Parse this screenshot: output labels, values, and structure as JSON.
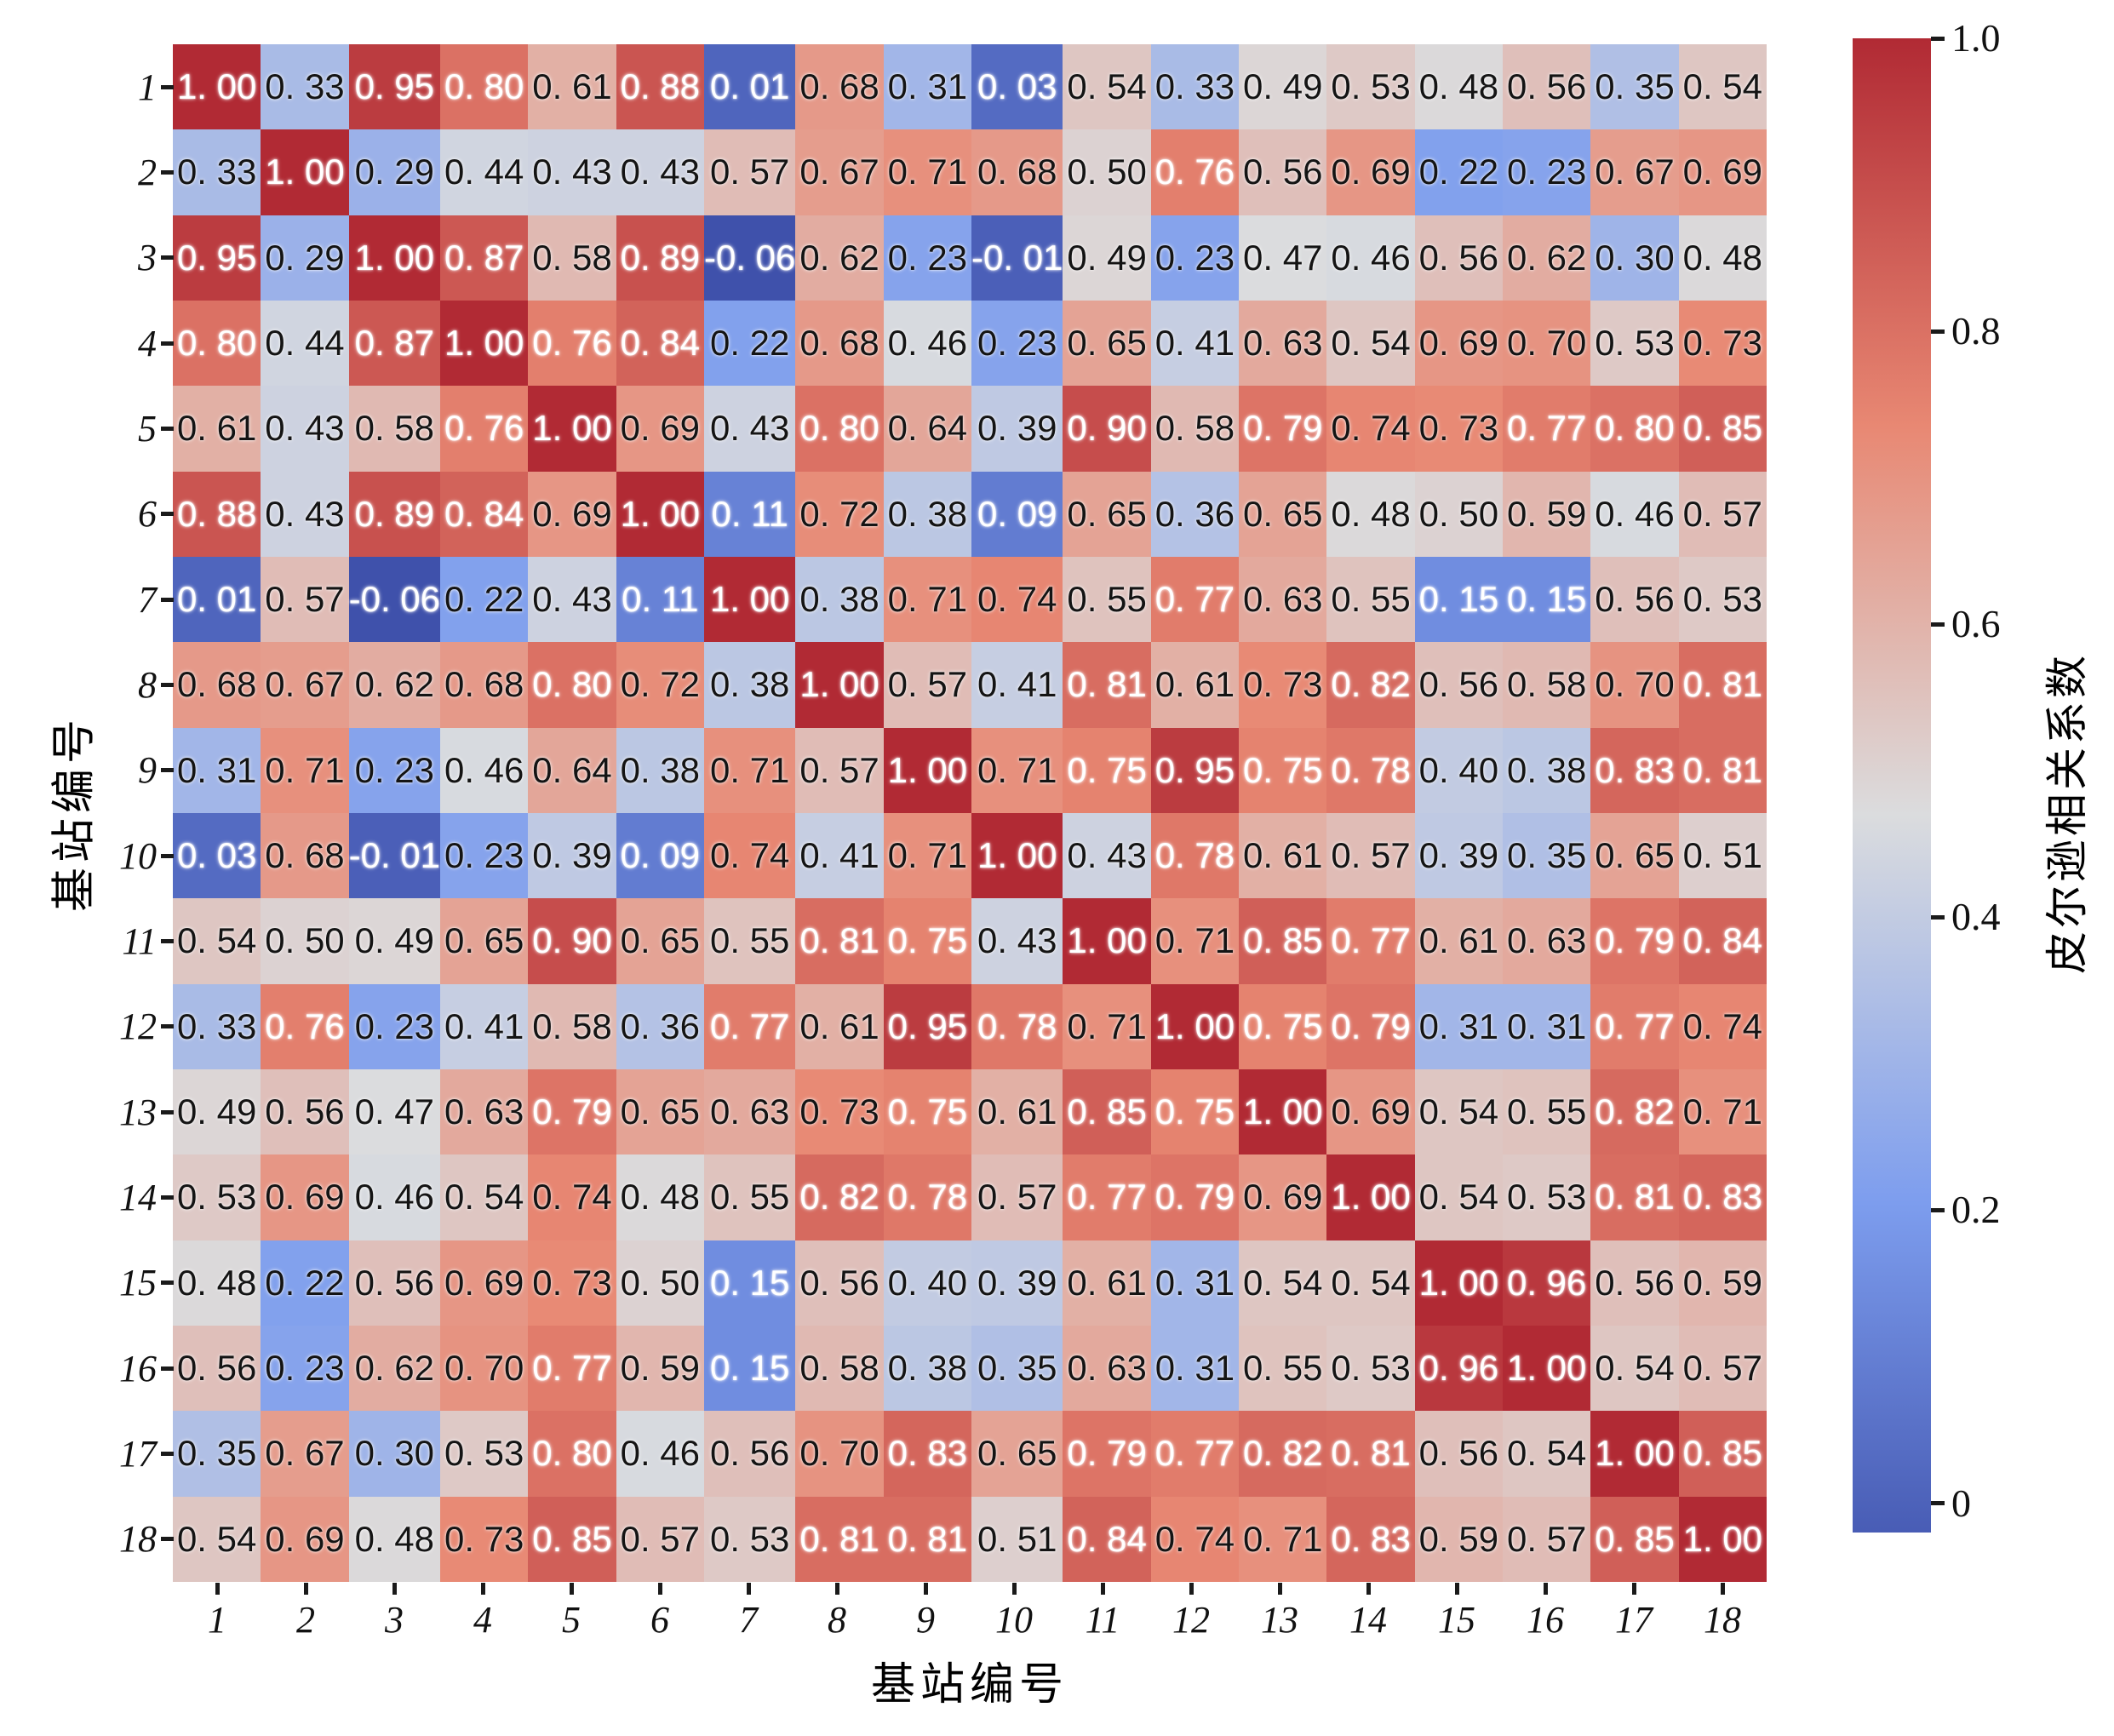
{
  "chart_data": {
    "type": "heatmap",
    "title": "",
    "xlabel": "基站编号",
    "ylabel": "基站编号",
    "categories": [
      "1",
      "2",
      "3",
      "4",
      "5",
      "6",
      "7",
      "8",
      "9",
      "10",
      "11",
      "12",
      "13",
      "14",
      "15",
      "16",
      "17",
      "18"
    ],
    "matrix": [
      [
        1.0,
        0.33,
        0.95,
        0.8,
        0.61,
        0.88,
        0.01,
        0.68,
        0.31,
        0.03,
        0.54,
        0.33,
        0.49,
        0.53,
        0.48,
        0.56,
        0.35,
        0.54
      ],
      [
        0.33,
        1.0,
        0.29,
        0.44,
        0.43,
        0.43,
        0.57,
        0.67,
        0.71,
        0.68,
        0.5,
        0.76,
        0.56,
        0.69,
        0.22,
        0.23,
        0.67,
        0.69
      ],
      [
        0.95,
        0.29,
        1.0,
        0.87,
        0.58,
        0.89,
        -0.06,
        0.62,
        0.23,
        -0.01,
        0.49,
        0.23,
        0.47,
        0.46,
        0.56,
        0.62,
        0.3,
        0.48
      ],
      [
        0.8,
        0.44,
        0.87,
        1.0,
        0.76,
        0.84,
        0.22,
        0.68,
        0.46,
        0.23,
        0.65,
        0.41,
        0.63,
        0.54,
        0.69,
        0.7,
        0.53,
        0.73
      ],
      [
        0.61,
        0.43,
        0.58,
        0.76,
        1.0,
        0.69,
        0.43,
        0.8,
        0.64,
        0.39,
        0.9,
        0.58,
        0.79,
        0.74,
        0.73,
        0.77,
        0.8,
        0.85
      ],
      [
        0.88,
        0.43,
        0.89,
        0.84,
        0.69,
        1.0,
        0.11,
        0.72,
        0.38,
        0.09,
        0.65,
        0.36,
        0.65,
        0.48,
        0.5,
        0.59,
        0.46,
        0.57
      ],
      [
        0.01,
        0.57,
        -0.06,
        0.22,
        0.43,
        0.11,
        1.0,
        0.38,
        0.71,
        0.74,
        0.55,
        0.77,
        0.63,
        0.55,
        0.15,
        0.15,
        0.56,
        0.53
      ],
      [
        0.68,
        0.67,
        0.62,
        0.68,
        0.8,
        0.72,
        0.38,
        1.0,
        0.57,
        0.41,
        0.81,
        0.61,
        0.73,
        0.82,
        0.56,
        0.58,
        0.7,
        0.81
      ],
      [
        0.31,
        0.71,
        0.23,
        0.46,
        0.64,
        0.38,
        0.71,
        0.57,
        1.0,
        0.71,
        0.75,
        0.95,
        0.75,
        0.78,
        0.4,
        0.38,
        0.83,
        0.81
      ],
      [
        0.03,
        0.68,
        -0.01,
        0.23,
        0.39,
        0.09,
        0.74,
        0.41,
        0.71,
        1.0,
        0.43,
        0.78,
        0.61,
        0.57,
        0.39,
        0.35,
        0.65,
        0.51
      ],
      [
        0.54,
        0.5,
        0.49,
        0.65,
        0.9,
        0.65,
        0.55,
        0.81,
        0.75,
        0.43,
        1.0,
        0.71,
        0.85,
        0.77,
        0.61,
        0.63,
        0.79,
        0.84
      ],
      [
        0.33,
        0.76,
        0.23,
        0.41,
        0.58,
        0.36,
        0.77,
        0.61,
        0.95,
        0.78,
        0.71,
        1.0,
        0.75,
        0.79,
        0.31,
        0.31,
        0.77,
        0.74
      ],
      [
        0.49,
        0.56,
        0.47,
        0.63,
        0.79,
        0.65,
        0.63,
        0.73,
        0.75,
        0.61,
        0.85,
        0.75,
        1.0,
        0.69,
        0.54,
        0.55,
        0.82,
        0.71
      ],
      [
        0.53,
        0.69,
        0.46,
        0.54,
        0.74,
        0.48,
        0.55,
        0.82,
        0.78,
        0.57,
        0.77,
        0.79,
        0.69,
        1.0,
        0.54,
        0.53,
        0.81,
        0.83
      ],
      [
        0.48,
        0.22,
        0.56,
        0.69,
        0.73,
        0.5,
        0.15,
        0.56,
        0.4,
        0.39,
        0.61,
        0.31,
        0.54,
        0.54,
        1.0,
        0.96,
        0.56,
        0.59
      ],
      [
        0.56,
        0.23,
        0.62,
        0.7,
        0.77,
        0.59,
        0.15,
        0.58,
        0.38,
        0.35,
        0.63,
        0.31,
        0.55,
        0.53,
        0.96,
        1.0,
        0.54,
        0.57
      ],
      [
        0.35,
        0.67,
        0.3,
        0.53,
        0.8,
        0.46,
        0.56,
        0.7,
        0.83,
        0.65,
        0.79,
        0.77,
        0.82,
        0.81,
        0.56,
        0.54,
        1.0,
        0.85
      ],
      [
        0.54,
        0.69,
        0.48,
        0.73,
        0.85,
        0.57,
        0.53,
        0.81,
        0.81,
        0.51,
        0.84,
        0.74,
        0.71,
        0.83,
        0.59,
        0.57,
        0.85,
        1.0
      ]
    ],
    "colorbar": {
      "label": "皮尔逊相关系数",
      "tick_labels": [
        "1.0",
        "0.8",
        "0.6",
        "0.4",
        "0.2",
        "0"
      ],
      "tick_values": [
        1.0,
        0.8,
        0.6,
        0.4,
        0.2,
        0
      ],
      "vmin": -0.06,
      "vmax": 1.0
    },
    "colormap": {
      "name": "coolwarm",
      "anchors": [
        {
          "t": 0.0,
          "color": "#3f51ab"
        },
        {
          "t": 0.25,
          "color": "#7d9dee"
        },
        {
          "t": 0.5,
          "color": "#dbdcde"
        },
        {
          "t": 0.75,
          "color": "#e88873"
        },
        {
          "t": 1.0,
          "color": "#b12a34"
        }
      ]
    },
    "grid": false,
    "legend_position": "right-colorbar",
    "n_rows": 18,
    "n_cols": 18
  }
}
